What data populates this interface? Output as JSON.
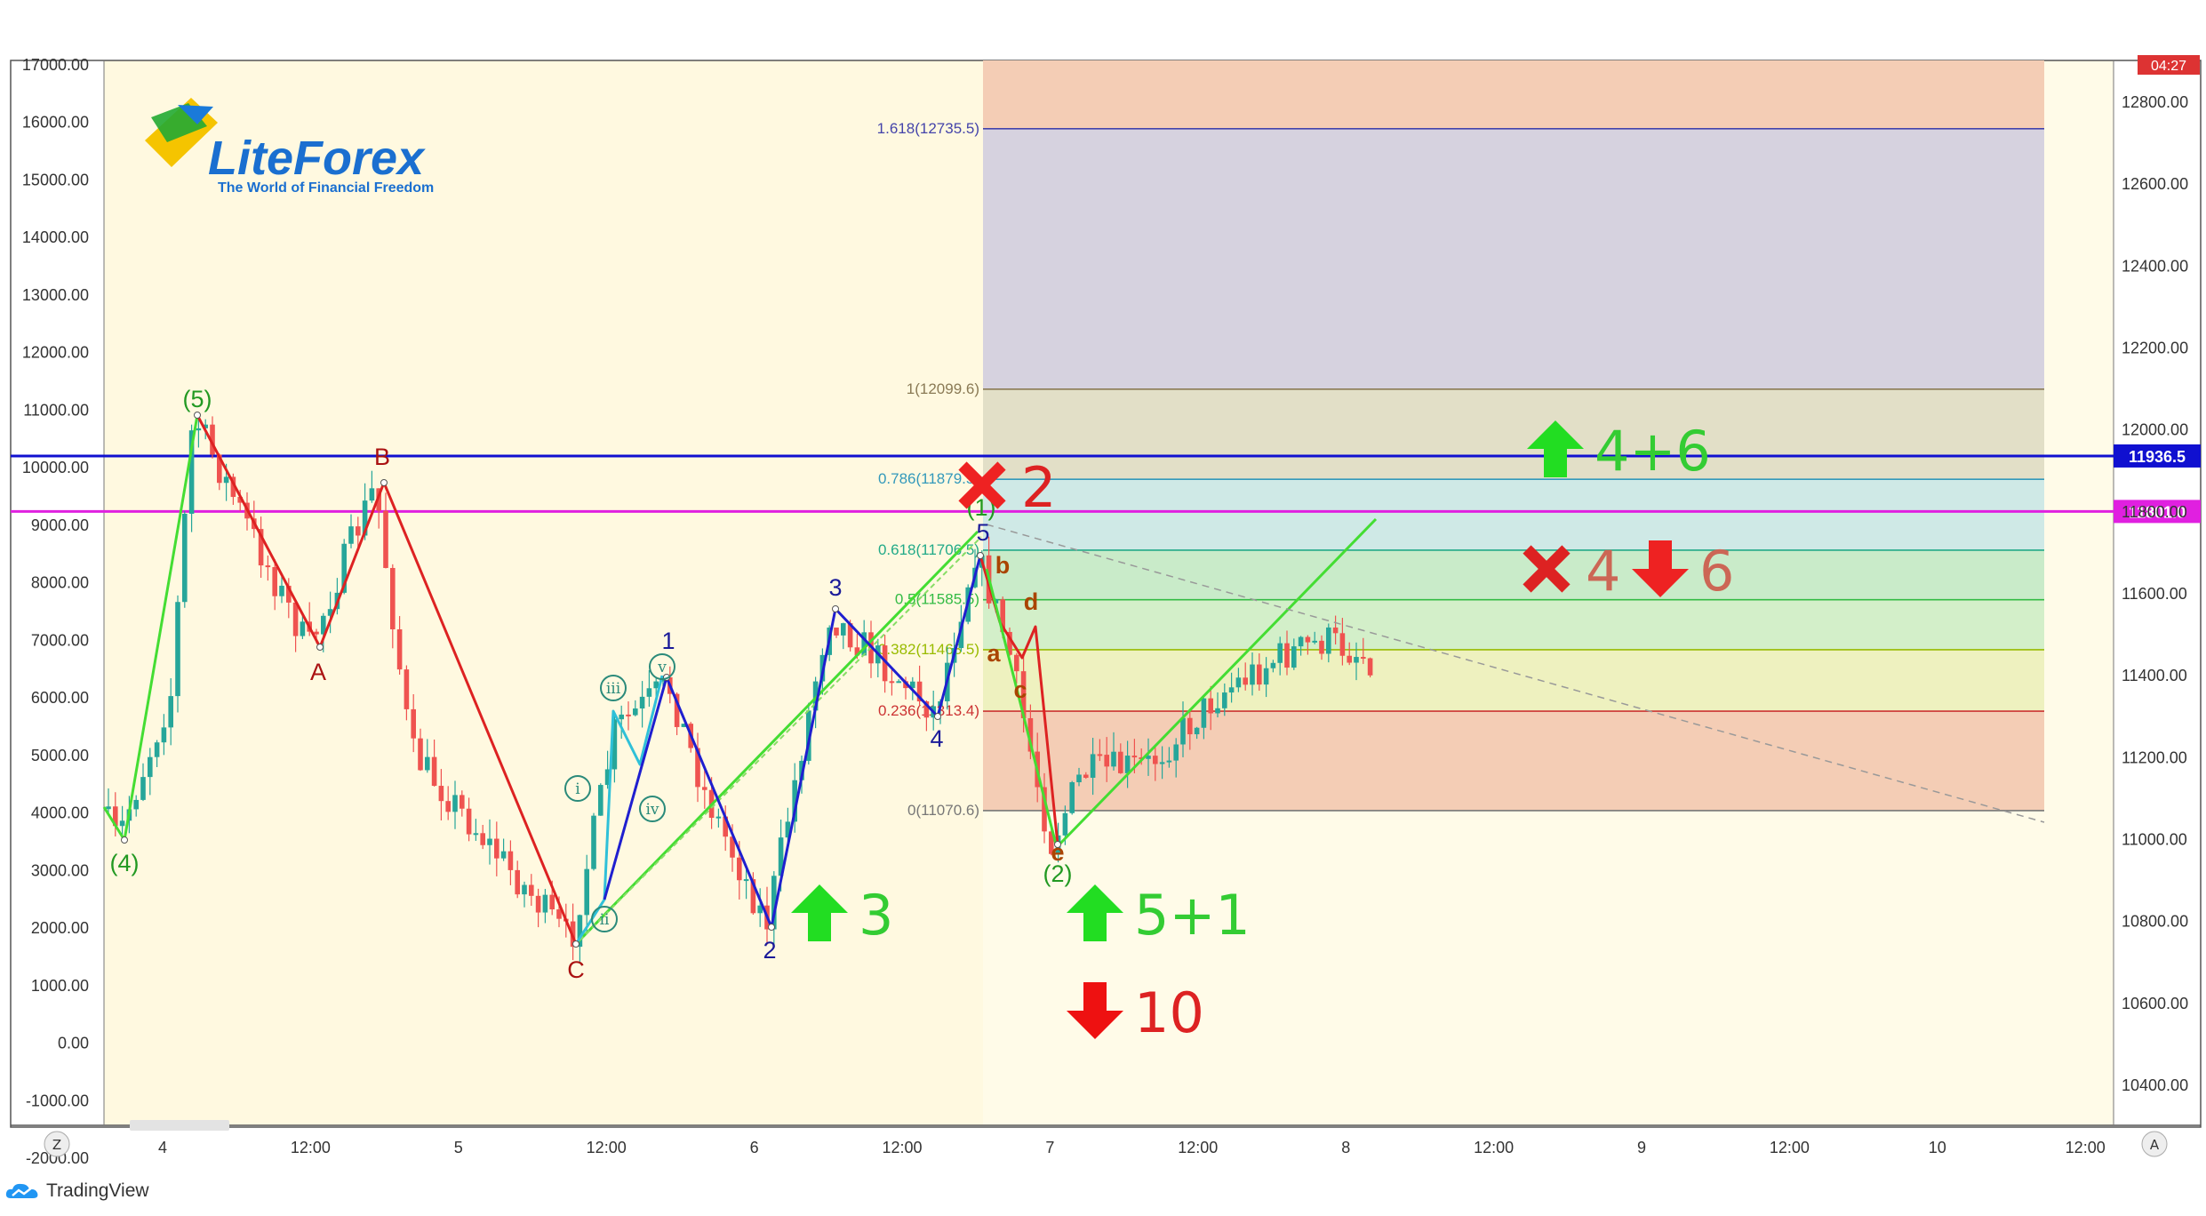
{
  "colors": {
    "bull": "#26a69a",
    "bear": "#ef5350",
    "green_wave": "#44dd33",
    "red_wave": "#dd2222",
    "blue_wave": "#1f1fcf",
    "cyan_wave": "#2fc0d8",
    "blue_level": "#1010d0",
    "magenta_level": "#e020e0",
    "plot_bg": "#fff9e0",
    "fib_right_bg": "#fffbe8"
  },
  "branding": {
    "logo_text": "LiteForex",
    "logo_tagline": "The World of Financial Freedom",
    "tradingview": "TradingView",
    "timer": "04:27"
  },
  "corner_buttons": {
    "left": "Z",
    "right": "A"
  },
  "chart_data": {
    "type": "candlestick",
    "left_axis": {
      "ticks": [
        "17000.00",
        "16000.00",
        "15000.00",
        "14000.00",
        "13000.00",
        "12000.00",
        "11000.00",
        "10000.00",
        "9000.00",
        "8000.00",
        "7000.00",
        "6000.00",
        "5000.00",
        "4000.00",
        "3000.00",
        "2000.00",
        "1000.00",
        "0.00",
        "-1000.00",
        "-2000.00"
      ]
    },
    "right_axis": {
      "ticks": [
        "12800.00",
        "12600.00",
        "12400.00",
        "12200.00",
        "12000.00",
        "11800.00",
        "11600.00",
        "11400.00",
        "11200.00",
        "11000.00",
        "10800.00",
        "10600.00",
        "10400.00"
      ],
      "range": [
        10300,
        12900
      ]
    },
    "x_axis": {
      "ticks": [
        "4",
        "12:00",
        "5",
        "12:00",
        "6",
        "12:00",
        "7",
        "12:00",
        "8",
        "12:00",
        "9",
        "12:00",
        "10",
        "12:00"
      ]
    },
    "price_labels": [
      {
        "value": "11936.5",
        "color": "#1010d0",
        "price": 11936.5
      },
      {
        "value": "11801.0",
        "color": "#e020e0",
        "price": 11801.0
      }
    ],
    "fib": {
      "levels": [
        {
          "label": "1.618(12735.5)",
          "price": 12735.5,
          "color": "#4444aa"
        },
        {
          "label": "1(12099.6)",
          "price": 12099.6,
          "color": "#8a7a55"
        },
        {
          "label": "0.786(11879.5)",
          "price": 11879.5,
          "color": "#3399bb"
        },
        {
          "label": "0.618(11706.5)",
          "price": 11706.5,
          "color": "#22aa88"
        },
        {
          "label": "0.5(11585.5)",
          "price": 11585.5,
          "color": "#33bb44"
        },
        {
          "label": "0.382(11463.5)",
          "price": 11463.5,
          "color": "#99bb00"
        },
        {
          "label": "0.236(11313.4)",
          "price": 11313.4,
          "color": "#cc3333"
        },
        {
          "label": "0(11070.6)",
          "price": 11070.6,
          "color": "#777777"
        }
      ]
    },
    "wave_labels": [
      {
        "text": "(5)",
        "color": "#229922"
      },
      {
        "text": "(4)",
        "color": "#229922"
      },
      {
        "text": "A",
        "color": "#aa1111"
      },
      {
        "text": "B",
        "color": "#aa1111"
      },
      {
        "text": "C",
        "color": "#aa1111"
      },
      {
        "text": "1",
        "color": "#1a1a99"
      },
      {
        "text": "2",
        "color": "#1a1a99"
      },
      {
        "text": "3",
        "color": "#1a1a99"
      },
      {
        "text": "4",
        "color": "#1a1a99"
      },
      {
        "text": "5",
        "color": "#1a1a99"
      },
      {
        "text": "(1)",
        "color": "#229922"
      },
      {
        "text": "(2)",
        "color": "#229922"
      },
      {
        "text": "a",
        "color": "#aa4400"
      },
      {
        "text": "b",
        "color": "#aa4400"
      },
      {
        "text": "c",
        "color": "#aa4400"
      },
      {
        "text": "d",
        "color": "#aa4400"
      },
      {
        "text": "e",
        "color": "#aa4400"
      }
    ],
    "circled_labels": [
      "i",
      "ii",
      "iii",
      "iv",
      "v"
    ],
    "signals": [
      {
        "text": "2",
        "kind": "cross",
        "color": "#dd2222"
      },
      {
        "text": "4+6",
        "kind": "up",
        "color": "#33cc33"
      },
      {
        "text": "4",
        "kind": "cross",
        "color": "#cc6655"
      },
      {
        "text": "6",
        "kind": "down",
        "color": "#cc6655"
      },
      {
        "text": "3",
        "kind": "up",
        "color": "#33cc33"
      },
      {
        "text": "5+1",
        "kind": "up",
        "color": "#33cc33"
      },
      {
        "text": "10",
        "kind": "down",
        "color": "#dd2222"
      }
    ]
  }
}
